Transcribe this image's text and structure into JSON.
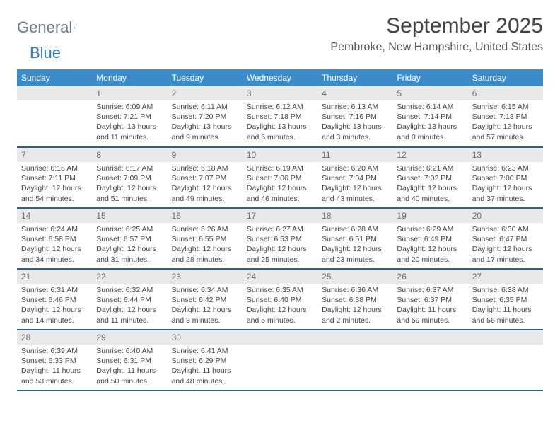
{
  "logo": {
    "word1": "General",
    "word2": "Blue"
  },
  "title": "September 2025",
  "location": "Pembroke, New Hampshire, United States",
  "colors": {
    "header_bg": "#3b8bc9",
    "header_text": "#ffffff",
    "daynum_bg": "#e9e9e9",
    "daynum_text": "#6a6a6a",
    "row_border": "#2c5f8d",
    "logo_gray": "#6b7a88",
    "logo_blue": "#2e7bbf",
    "background": "#ffffff"
  },
  "typography": {
    "title_fontsize": 30,
    "location_fontsize": 16,
    "dayheader_fontsize": 12,
    "daynum_fontsize": 12,
    "body_fontsize": 10.5
  },
  "day_headers": [
    "Sunday",
    "Monday",
    "Tuesday",
    "Wednesday",
    "Thursday",
    "Friday",
    "Saturday"
  ],
  "weeks": [
    [
      {
        "n": "",
        "sunrise": "",
        "sunset": "",
        "daylight": ""
      },
      {
        "n": "1",
        "sunrise": "Sunrise: 6:09 AM",
        "sunset": "Sunset: 7:21 PM",
        "daylight": "Daylight: 13 hours and 11 minutes."
      },
      {
        "n": "2",
        "sunrise": "Sunrise: 6:11 AM",
        "sunset": "Sunset: 7:20 PM",
        "daylight": "Daylight: 13 hours and 9 minutes."
      },
      {
        "n": "3",
        "sunrise": "Sunrise: 6:12 AM",
        "sunset": "Sunset: 7:18 PM",
        "daylight": "Daylight: 13 hours and 6 minutes."
      },
      {
        "n": "4",
        "sunrise": "Sunrise: 6:13 AM",
        "sunset": "Sunset: 7:16 PM",
        "daylight": "Daylight: 13 hours and 3 minutes."
      },
      {
        "n": "5",
        "sunrise": "Sunrise: 6:14 AM",
        "sunset": "Sunset: 7:14 PM",
        "daylight": "Daylight: 13 hours and 0 minutes."
      },
      {
        "n": "6",
        "sunrise": "Sunrise: 6:15 AM",
        "sunset": "Sunset: 7:13 PM",
        "daylight": "Daylight: 12 hours and 57 minutes."
      }
    ],
    [
      {
        "n": "7",
        "sunrise": "Sunrise: 6:16 AM",
        "sunset": "Sunset: 7:11 PM",
        "daylight": "Daylight: 12 hours and 54 minutes."
      },
      {
        "n": "8",
        "sunrise": "Sunrise: 6:17 AM",
        "sunset": "Sunset: 7:09 PM",
        "daylight": "Daylight: 12 hours and 51 minutes."
      },
      {
        "n": "9",
        "sunrise": "Sunrise: 6:18 AM",
        "sunset": "Sunset: 7:07 PM",
        "daylight": "Daylight: 12 hours and 49 minutes."
      },
      {
        "n": "10",
        "sunrise": "Sunrise: 6:19 AM",
        "sunset": "Sunset: 7:06 PM",
        "daylight": "Daylight: 12 hours and 46 minutes."
      },
      {
        "n": "11",
        "sunrise": "Sunrise: 6:20 AM",
        "sunset": "Sunset: 7:04 PM",
        "daylight": "Daylight: 12 hours and 43 minutes."
      },
      {
        "n": "12",
        "sunrise": "Sunrise: 6:21 AM",
        "sunset": "Sunset: 7:02 PM",
        "daylight": "Daylight: 12 hours and 40 minutes."
      },
      {
        "n": "13",
        "sunrise": "Sunrise: 6:23 AM",
        "sunset": "Sunset: 7:00 PM",
        "daylight": "Daylight: 12 hours and 37 minutes."
      }
    ],
    [
      {
        "n": "14",
        "sunrise": "Sunrise: 6:24 AM",
        "sunset": "Sunset: 6:58 PM",
        "daylight": "Daylight: 12 hours and 34 minutes."
      },
      {
        "n": "15",
        "sunrise": "Sunrise: 6:25 AM",
        "sunset": "Sunset: 6:57 PM",
        "daylight": "Daylight: 12 hours and 31 minutes."
      },
      {
        "n": "16",
        "sunrise": "Sunrise: 6:26 AM",
        "sunset": "Sunset: 6:55 PM",
        "daylight": "Daylight: 12 hours and 28 minutes."
      },
      {
        "n": "17",
        "sunrise": "Sunrise: 6:27 AM",
        "sunset": "Sunset: 6:53 PM",
        "daylight": "Daylight: 12 hours and 25 minutes."
      },
      {
        "n": "18",
        "sunrise": "Sunrise: 6:28 AM",
        "sunset": "Sunset: 6:51 PM",
        "daylight": "Daylight: 12 hours and 23 minutes."
      },
      {
        "n": "19",
        "sunrise": "Sunrise: 6:29 AM",
        "sunset": "Sunset: 6:49 PM",
        "daylight": "Daylight: 12 hours and 20 minutes."
      },
      {
        "n": "20",
        "sunrise": "Sunrise: 6:30 AM",
        "sunset": "Sunset: 6:47 PM",
        "daylight": "Daylight: 12 hours and 17 minutes."
      }
    ],
    [
      {
        "n": "21",
        "sunrise": "Sunrise: 6:31 AM",
        "sunset": "Sunset: 6:46 PM",
        "daylight": "Daylight: 12 hours and 14 minutes."
      },
      {
        "n": "22",
        "sunrise": "Sunrise: 6:32 AM",
        "sunset": "Sunset: 6:44 PM",
        "daylight": "Daylight: 12 hours and 11 minutes."
      },
      {
        "n": "23",
        "sunrise": "Sunrise: 6:34 AM",
        "sunset": "Sunset: 6:42 PM",
        "daylight": "Daylight: 12 hours and 8 minutes."
      },
      {
        "n": "24",
        "sunrise": "Sunrise: 6:35 AM",
        "sunset": "Sunset: 6:40 PM",
        "daylight": "Daylight: 12 hours and 5 minutes."
      },
      {
        "n": "25",
        "sunrise": "Sunrise: 6:36 AM",
        "sunset": "Sunset: 6:38 PM",
        "daylight": "Daylight: 12 hours and 2 minutes."
      },
      {
        "n": "26",
        "sunrise": "Sunrise: 6:37 AM",
        "sunset": "Sunset: 6:37 PM",
        "daylight": "Daylight: 11 hours and 59 minutes."
      },
      {
        "n": "27",
        "sunrise": "Sunrise: 6:38 AM",
        "sunset": "Sunset: 6:35 PM",
        "daylight": "Daylight: 11 hours and 56 minutes."
      }
    ],
    [
      {
        "n": "28",
        "sunrise": "Sunrise: 6:39 AM",
        "sunset": "Sunset: 6:33 PM",
        "daylight": "Daylight: 11 hours and 53 minutes."
      },
      {
        "n": "29",
        "sunrise": "Sunrise: 6:40 AM",
        "sunset": "Sunset: 6:31 PM",
        "daylight": "Daylight: 11 hours and 50 minutes."
      },
      {
        "n": "30",
        "sunrise": "Sunrise: 6:41 AM",
        "sunset": "Sunset: 6:29 PM",
        "daylight": "Daylight: 11 hours and 48 minutes."
      },
      {
        "n": "",
        "sunrise": "",
        "sunset": "",
        "daylight": ""
      },
      {
        "n": "",
        "sunrise": "",
        "sunset": "",
        "daylight": ""
      },
      {
        "n": "",
        "sunrise": "",
        "sunset": "",
        "daylight": ""
      },
      {
        "n": "",
        "sunrise": "",
        "sunset": "",
        "daylight": ""
      }
    ]
  ]
}
